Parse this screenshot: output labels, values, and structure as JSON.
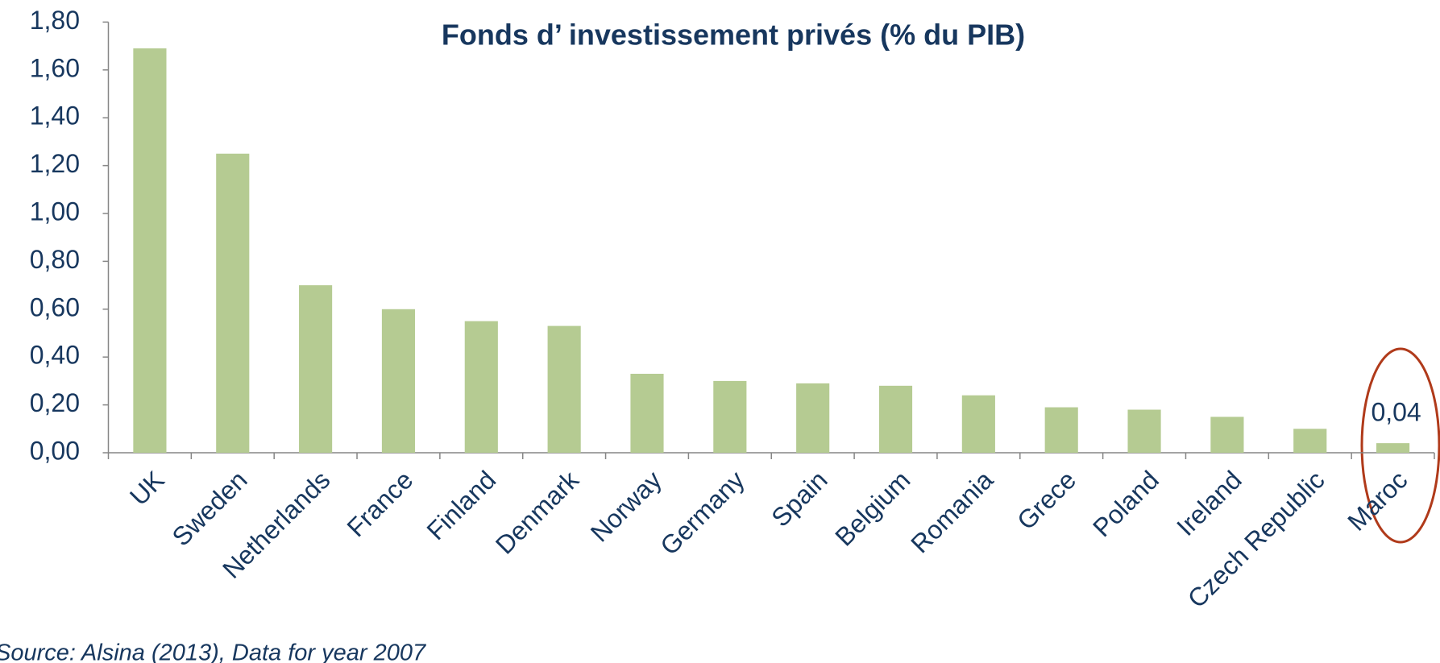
{
  "chart_data": {
    "type": "bar",
    "title": "Fonds d’ investissement privés (% du PIB)",
    "source": "Source: Alsina (2013), Data for year 2007",
    "categories": [
      "UK",
      "Sweden",
      "Netherlands",
      "France",
      "Finland",
      "Denmark",
      "Norway",
      "Germany",
      "Spain",
      "Belgium",
      "Romania",
      "Grece",
      "Poland",
      "Ireland",
      "Czech Republic",
      "Maroc"
    ],
    "values": [
      1.69,
      1.25,
      0.7,
      0.6,
      0.55,
      0.53,
      0.33,
      0.3,
      0.29,
      0.28,
      0.24,
      0.19,
      0.18,
      0.15,
      0.1,
      0.04
    ],
    "value_labels": [
      null,
      null,
      null,
      null,
      null,
      null,
      null,
      null,
      null,
      null,
      null,
      null,
      null,
      null,
      null,
      "0,04"
    ],
    "color": "#b5cb92",
    "ylim": [
      0,
      1.8
    ],
    "yticks": [
      {
        "value": 0,
        "label": "0,00"
      },
      {
        "value": 0.2,
        "label": "0,20"
      },
      {
        "value": 0.4,
        "label": "0,40"
      },
      {
        "value": 0.6,
        "label": "0,60"
      },
      {
        "value": 0.8,
        "label": "0,80"
      },
      {
        "value": 1.0,
        "label": "1,00"
      },
      {
        "value": 1.2,
        "label": "1,20"
      },
      {
        "value": 1.4,
        "label": "1,40"
      },
      {
        "value": 1.6,
        "label": "1,60"
      },
      {
        "value": 1.8,
        "label": "1,80"
      }
    ],
    "grid": false
  }
}
